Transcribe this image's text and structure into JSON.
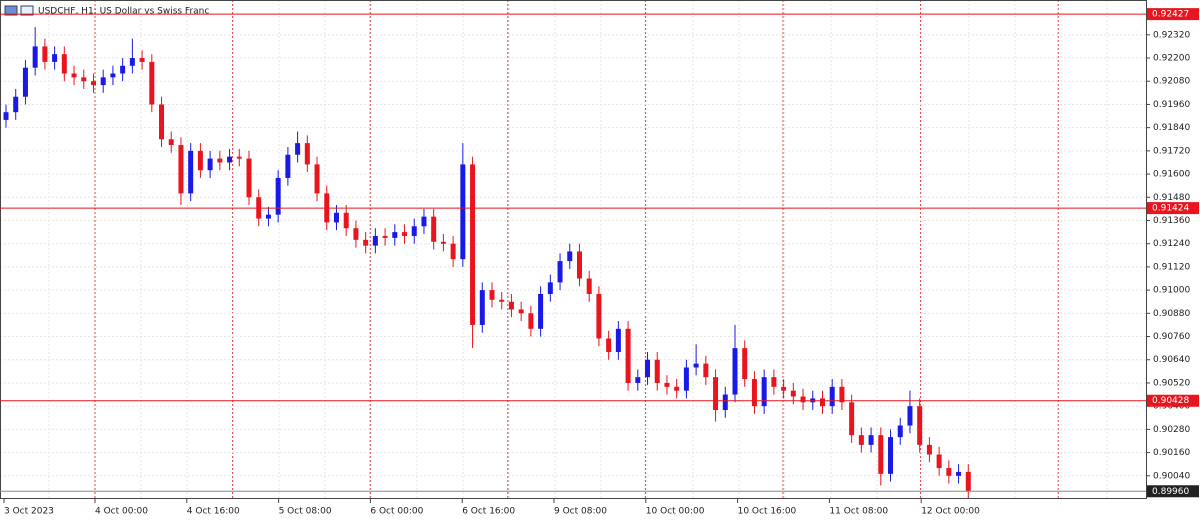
{
  "chart_data": {
    "type": "candlestick",
    "title": "USDCHF, H1:  US Dollar vs Swiss Franc",
    "bull_color": "#1a1ae6",
    "bear_color": "#e8141e",
    "ylim": [
      0.8992,
      0.925
    ],
    "yticks": [
      {
        "value": 0.9232,
        "label": "0.92320"
      },
      {
        "value": 0.922,
        "label": "0.92200"
      },
      {
        "value": 0.9208,
        "label": "0.92080"
      },
      {
        "value": 0.9196,
        "label": "0.91960"
      },
      {
        "value": 0.9184,
        "label": "0.91840"
      },
      {
        "value": 0.9172,
        "label": "0.91720"
      },
      {
        "value": 0.916,
        "label": "0.91600"
      },
      {
        "value": 0.9148,
        "label": "0.91480"
      },
      {
        "value": 0.9136,
        "label": "0.91360"
      },
      {
        "value": 0.9124,
        "label": "0.91240"
      },
      {
        "value": 0.9112,
        "label": "0.91120"
      },
      {
        "value": 0.91,
        "label": "0.91000"
      },
      {
        "value": 0.9088,
        "label": "0.90880"
      },
      {
        "value": 0.9076,
        "label": "0.90760"
      },
      {
        "value": 0.9064,
        "label": "0.90640"
      },
      {
        "value": 0.9052,
        "label": "0.90520"
      },
      {
        "value": 0.904,
        "label": "0.90400"
      },
      {
        "value": 0.9028,
        "label": "0.90280"
      },
      {
        "value": 0.9016,
        "label": "0.90160"
      },
      {
        "value": 0.9004,
        "label": "0.90040"
      }
    ],
    "levels": [
      {
        "value": 0.92427,
        "label": "0.92427"
      },
      {
        "value": 0.91424,
        "label": "0.91424"
      },
      {
        "value": 0.90428,
        "label": "0.90428"
      }
    ],
    "current_price": {
      "value": 0.8996,
      "label": "0.89960"
    },
    "xticks": [
      "3 Oct 2023",
      "4 Oct 00:00",
      "4 Oct 16:00",
      "5 Oct 08:00",
      "6 Oct 00:00",
      "6 Oct 16:00",
      "9 Oct 08:00",
      "10 Oct 00:00",
      "10 Oct 16:00",
      "11 Oct 08:00",
      "12 Oct 00:00"
    ],
    "open": [
      0.9188,
      0.9192,
      0.92,
      0.9215,
      0.9226,
      0.9218,
      0.9222,
      0.9212,
      0.921,
      0.9208,
      0.9206,
      0.921,
      0.9212,
      0.9216,
      0.922,
      0.9218,
      0.9196,
      0.9178,
      0.9175,
      0.915,
      0.9172,
      0.9162,
      0.9168,
      0.9166,
      0.9169,
      0.9168,
      0.9148,
      0.9137,
      0.9139,
      0.9158,
      0.917,
      0.9176,
      0.9165,
      0.915,
      0.9135,
      0.914,
      0.9132,
      0.9126,
      0.9123,
      0.9128,
      0.9127,
      0.913,
      0.9128,
      0.9133,
      0.9138,
      0.9125,
      0.9124,
      0.9116,
      0.9165,
      0.9082,
      0.91,
      0.9095,
      0.9094,
      0.909,
      0.9088,
      0.908,
      0.9098,
      0.9104,
      0.9115,
      0.912,
      0.9106,
      0.9098,
      0.9075,
      0.9068,
      0.908,
      0.9052,
      0.9055,
      0.9064,
      0.9052,
      0.905,
      0.9048,
      0.906,
      0.9062,
      0.9055,
      0.9038,
      0.9046,
      0.907,
      0.9054,
      0.904,
      0.9055,
      0.905,
      0.9048,
      0.9045,
      0.9042,
      0.9044,
      0.904,
      0.905,
      0.9042,
      0.9025,
      0.902,
      0.9025,
      0.9005,
      0.9024,
      0.903,
      0.904,
      0.902,
      0.9015,
      0.9008,
      0.9004,
      0.9006
    ],
    "high": [
      0.9196,
      0.9204,
      0.9219,
      0.9236,
      0.923,
      0.9226,
      0.9226,
      0.9216,
      0.9214,
      0.9212,
      0.9214,
      0.9216,
      0.922,
      0.923,
      0.9224,
      0.9222,
      0.92,
      0.9182,
      0.9179,
      0.9176,
      0.9176,
      0.9172,
      0.9172,
      0.9173,
      0.9173,
      0.9172,
      0.9152,
      0.9143,
      0.9162,
      0.9174,
      0.9182,
      0.918,
      0.9169,
      0.9154,
      0.9144,
      0.9144,
      0.9136,
      0.913,
      0.9132,
      0.9132,
      0.9134,
      0.9134,
      0.9137,
      0.9142,
      0.9142,
      0.9129,
      0.9128,
      0.9176,
      0.9169,
      0.9104,
      0.9104,
      0.9099,
      0.9098,
      0.9094,
      0.9092,
      0.9102,
      0.9108,
      0.9119,
      0.9124,
      0.9124,
      0.911,
      0.9102,
      0.9079,
      0.9084,
      0.9084,
      0.9059,
      0.9068,
      0.9068,
      0.9056,
      0.9054,
      0.9064,
      0.9072,
      0.9066,
      0.9059,
      0.905,
      0.9082,
      0.9074,
      0.9058,
      0.9059,
      0.9059,
      0.9054,
      0.9052,
      0.9049,
      0.9048,
      0.9048,
      0.9054,
      0.9054,
      0.9046,
      0.9029,
      0.9029,
      0.9029,
      0.9028,
      0.9034,
      0.9048,
      0.9044,
      0.9024,
      0.9019,
      0.9012,
      0.901,
      0.901
    ],
    "low": [
      0.9184,
      0.9188,
      0.9196,
      0.9211,
      0.9214,
      0.9214,
      0.9208,
      0.9206,
      0.9204,
      0.9202,
      0.9202,
      0.9206,
      0.9208,
      0.9212,
      0.9214,
      0.9192,
      0.9174,
      0.9171,
      0.9144,
      0.9146,
      0.9158,
      0.9158,
      0.9162,
      0.9162,
      0.9164,
      0.9144,
      0.9133,
      0.9133,
      0.9135,
      0.9154,
      0.9166,
      0.9161,
      0.9146,
      0.9131,
      0.9131,
      0.9128,
      0.9122,
      0.9119,
      0.9119,
      0.9123,
      0.9123,
      0.9124,
      0.9124,
      0.9129,
      0.9121,
      0.912,
      0.9112,
      0.9112,
      0.907,
      0.9078,
      0.9091,
      0.909,
      0.9086,
      0.9084,
      0.9076,
      0.9076,
      0.9094,
      0.91,
      0.9111,
      0.9102,
      0.9094,
      0.9071,
      0.9064,
      0.9064,
      0.9048,
      0.9048,
      0.9051,
      0.9048,
      0.9046,
      0.9044,
      0.9044,
      0.9056,
      0.9051,
      0.9032,
      0.9034,
      0.9042,
      0.905,
      0.9036,
      0.9036,
      0.9046,
      0.9044,
      0.9041,
      0.9038,
      0.9038,
      0.9036,
      0.9036,
      0.9038,
      0.9021,
      0.9016,
      0.9016,
      0.8999,
      0.9001,
      0.902,
      0.9026,
      0.9016,
      0.9011,
      0.9004,
      0.9,
      0.9,
      0.8992
    ],
    "close": [
      0.9192,
      0.92,
      0.9215,
      0.9226,
      0.9218,
      0.9222,
      0.9212,
      0.921,
      0.9208,
      0.9206,
      0.921,
      0.9212,
      0.9216,
      0.922,
      0.9218,
      0.9196,
      0.9178,
      0.9175,
      0.915,
      0.9172,
      0.9162,
      0.9168,
      0.9166,
      0.9169,
      0.9168,
      0.9148,
      0.9137,
      0.9139,
      0.9158,
      0.917,
      0.9176,
      0.9165,
      0.915,
      0.9135,
      0.914,
      0.9132,
      0.9126,
      0.9123,
      0.9128,
      0.9127,
      0.913,
      0.9128,
      0.9133,
      0.9138,
      0.9125,
      0.9124,
      0.9116,
      0.9165,
      0.9082,
      0.91,
      0.9095,
      0.9094,
      0.909,
      0.9088,
      0.908,
      0.9098,
      0.9104,
      0.9115,
      0.912,
      0.9106,
      0.9098,
      0.9075,
      0.9068,
      0.908,
      0.9052,
      0.9055,
      0.9064,
      0.9052,
      0.905,
      0.9048,
      0.906,
      0.9062,
      0.9055,
      0.9038,
      0.9046,
      0.907,
      0.9054,
      0.904,
      0.9055,
      0.905,
      0.9048,
      0.9045,
      0.9042,
      0.9044,
      0.904,
      0.905,
      0.9042,
      0.9025,
      0.902,
      0.9025,
      0.9005,
      0.9024,
      0.903,
      0.904,
      0.902,
      0.9015,
      0.9008,
      0.9004,
      0.9006,
      0.8996
    ]
  }
}
